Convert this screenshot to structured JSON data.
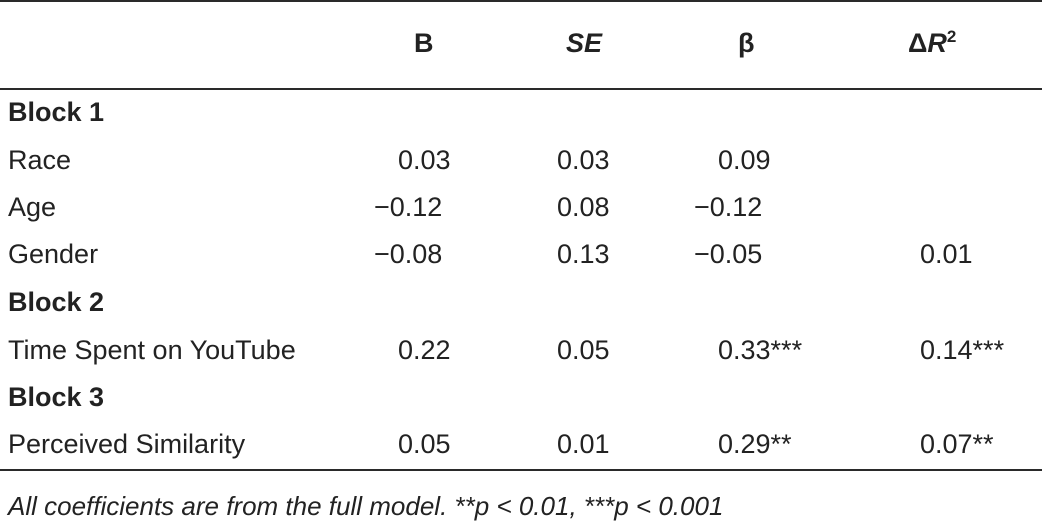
{
  "table": {
    "headers": {
      "b": "B",
      "se": "SE",
      "beta": "β",
      "dr2_delta": "Δ",
      "dr2_r": "R",
      "dr2_sup": "2"
    },
    "rows": [
      {
        "label": "Block 1",
        "type": "block"
      },
      {
        "label": "Race",
        "b": "0.03",
        "se": "0.03",
        "beta": "0.09",
        "dr2": ""
      },
      {
        "label": "Age",
        "b": "−0.12",
        "se": "0.08",
        "beta": "−0.12",
        "dr2": ""
      },
      {
        "label": "Gender",
        "b": "−0.08",
        "se": "0.13",
        "beta": "−0.05",
        "dr2": "0.01"
      },
      {
        "label": "Block 2",
        "type": "block"
      },
      {
        "label": "Time Spent on YouTube",
        "b": "0.22",
        "se": "0.05",
        "beta": "0.33***",
        "dr2": "0.14***"
      },
      {
        "label": "Block 3",
        "type": "block"
      },
      {
        "label": "Perceived Similarity",
        "b": "0.05",
        "se": "0.01",
        "beta": "0.29**",
        "dr2": "0.07**"
      }
    ],
    "note": "All coefficients are from the full model. **p < 0.01, ***p < 0.001"
  }
}
